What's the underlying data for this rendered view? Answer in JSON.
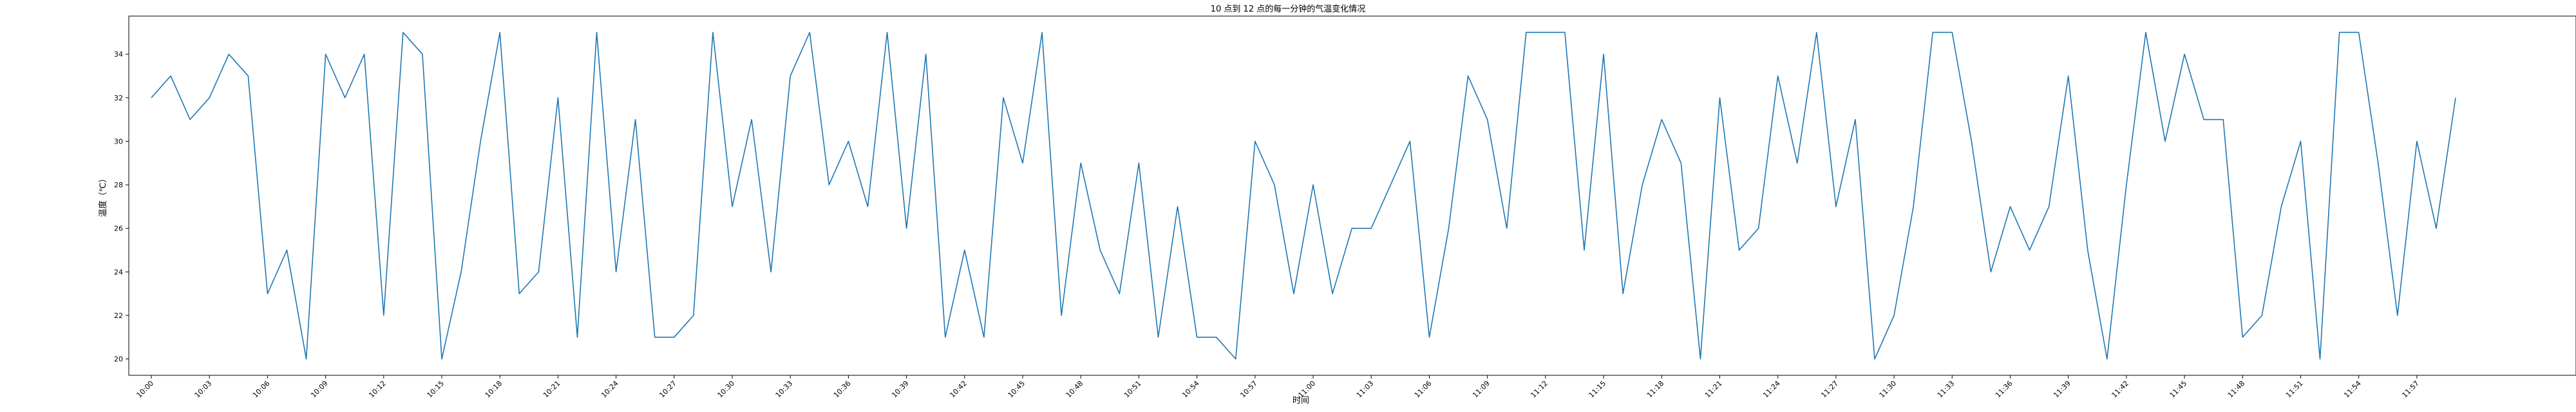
{
  "chart_data": {
    "type": "line",
    "title": "10 点到 12 点的每一分钟的气温变化情况",
    "xlabel": "时间",
    "ylabel": "温度（℃）",
    "ylim": [
      19.25,
      35.75
    ],
    "yticks": [
      20,
      22,
      24,
      26,
      28,
      30,
      32,
      34
    ],
    "xticks": [
      "10:00",
      "10:03",
      "10:06",
      "10:09",
      "10:12",
      "10:15",
      "10:18",
      "10:21",
      "10:24",
      "10:27",
      "10:30",
      "10:33",
      "10:36",
      "10:39",
      "10:42",
      "10:45",
      "10:48",
      "10:51",
      "10:54",
      "10:57",
      "11:00",
      "11:03",
      "11:06",
      "11:09",
      "11:12",
      "11:15",
      "11:18",
      "11:21",
      "11:24",
      "11:27",
      "11:30",
      "11:33",
      "11:36",
      "11:39",
      "11:42",
      "11:45",
      "11:48",
      "11:51",
      "11:54",
      "11:57"
    ],
    "grid": false,
    "series": [
      {
        "color": "#1f77b4",
        "values": [
          32,
          33,
          31,
          32,
          34,
          33,
          23,
          25,
          20,
          34,
          32,
          34,
          22,
          35,
          34,
          20,
          24,
          30,
          35,
          23,
          24,
          32,
          21,
          35,
          24,
          31,
          21,
          21,
          22,
          35,
          27,
          31,
          24,
          33,
          35,
          28,
          30,
          27,
          35,
          26,
          34,
          21,
          25,
          21,
          32,
          29,
          35,
          22,
          29,
          25,
          23,
          29,
          21,
          27,
          21,
          21,
          20,
          30,
          28,
          23,
          28,
          23,
          26,
          26,
          28,
          30,
          21,
          26,
          33,
          31,
          26,
          35,
          35,
          35,
          25,
          34,
          23,
          28,
          31,
          29,
          20,
          32,
          25,
          26,
          33,
          29,
          35,
          27,
          31,
          20,
          22,
          27,
          35,
          35,
          30,
          24,
          27,
          25,
          27,
          33,
          25,
          20,
          28,
          35,
          30,
          34,
          31,
          31,
          21,
          22,
          27,
          30,
          20,
          35,
          35,
          29,
          22,
          30,
          26,
          32
        ]
      }
    ]
  }
}
